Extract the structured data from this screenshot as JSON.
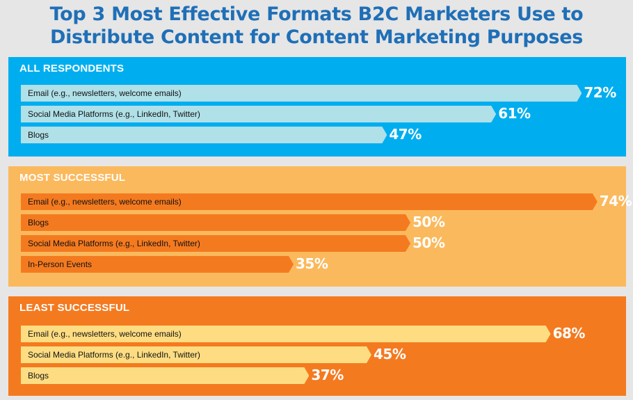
{
  "title_lines": [
    "Top 3 Most Effective Formats B2C Marketers Use to",
    "Distribute Content for Content Marketing Purposes"
  ],
  "chart_data": [
    {
      "type": "bar",
      "orientation": "horizontal",
      "title": "ALL RESPONDENTS",
      "categories": [
        "Email (e.g., newsletters, welcome emails)",
        "Social Media Platforms (e.g., LinkedIn, Twitter)",
        "Blogs"
      ],
      "values": [
        72,
        61,
        47
      ],
      "value_suffix": "%",
      "colors": {
        "panel": "#00aeef",
        "bar": "#b0e0e8"
      }
    },
    {
      "type": "bar",
      "orientation": "horizontal",
      "title": "MOST SUCCESSFUL",
      "categories": [
        "Email (e.g., newsletters, welcome emails)",
        "Blogs",
        "Social Media Platforms (e.g., LinkedIn, Twitter)",
        "In-Person Events"
      ],
      "values": [
        74,
        50,
        50,
        35
      ],
      "value_suffix": "%",
      "colors": {
        "panel": "#fbb95d",
        "bar": "#f47a20"
      }
    },
    {
      "type": "bar",
      "orientation": "horizontal",
      "title": "LEAST SUCCESSFUL",
      "categories": [
        "Email (e.g., newsletters, welcome emails)",
        "Social Media Platforms (e.g., LinkedIn, Twitter)",
        "Blogs"
      ],
      "values": [
        68,
        45,
        37
      ],
      "value_suffix": "%",
      "colors": {
        "panel": "#f47a20",
        "bar": "#fedd82"
      }
    }
  ]
}
